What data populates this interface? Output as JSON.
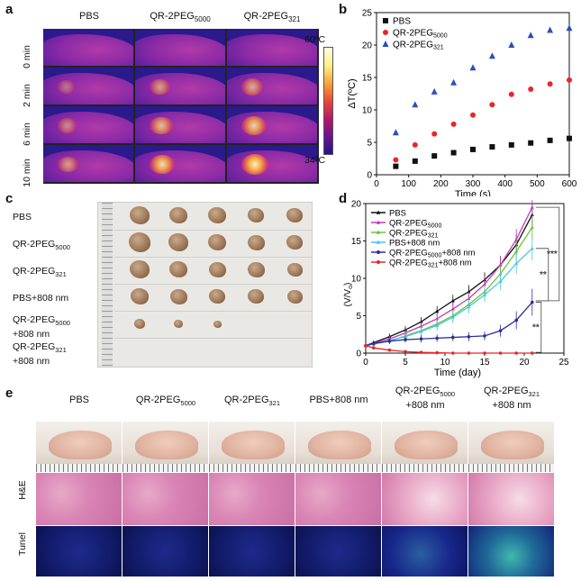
{
  "panel_labels": {
    "a": "a",
    "b": "b",
    "c": "c",
    "d": "d",
    "e": "e"
  },
  "panel_a": {
    "columns": [
      "PBS",
      "QR-2PEG",
      "QR-2PEG"
    ],
    "column_subs": [
      "",
      "5000",
      "321"
    ],
    "rows": [
      "0 min",
      "2 min",
      "6 min",
      "10 min"
    ],
    "scale_top": "60ºC",
    "scale_bottom": "34ºC"
  },
  "panel_c": {
    "rows": [
      {
        "line1": "PBS",
        "line2": ""
      },
      {
        "line1": "QR-2PEG",
        "sub": "5000",
        "line2": ""
      },
      {
        "line1": "QR-2PEG",
        "sub": "321",
        "line2": ""
      },
      {
        "line1": "PBS+808 nm",
        "line2": ""
      },
      {
        "line1": "QR-2PEG",
        "sub": "5000",
        "line2": "+808 nm"
      },
      {
        "line1": "QR-2PEG",
        "sub": "321",
        "line2": "+808 nm"
      }
    ],
    "tumor_counts": [
      5,
      5,
      5,
      5,
      3,
      0
    ]
  },
  "panel_e": {
    "columns": [
      {
        "l1": "PBS",
        "sub": "",
        "l2": ""
      },
      {
        "l1": "QR-2PEG",
        "sub": "5000",
        "l2": ""
      },
      {
        "l1": "QR-2PEG",
        "sub": "321",
        "l2": ""
      },
      {
        "l1": "PBS+808 nm",
        "sub": "",
        "l2": ""
      },
      {
        "l1": "QR-2PEG",
        "sub": "5000",
        "l2": "+808 nm"
      },
      {
        "l1": "QR-2PEG",
        "sub": "321",
        "l2": "+808 nm"
      }
    ],
    "row_labels": [
      "H&E",
      "Tunel"
    ]
  },
  "chart_data": [
    {
      "type": "scatter",
      "panel": "b",
      "xlabel": "Time (s)",
      "ylabel": "ΔT(ºC)",
      "xlim": [
        0,
        600
      ],
      "ylim": [
        0,
        25
      ],
      "xticks": [
        0,
        100,
        200,
        300,
        400,
        500,
        600
      ],
      "yticks": [
        0,
        5,
        10,
        15,
        20,
        25
      ],
      "legend_position": "top-left",
      "series": [
        {
          "name": "PBS",
          "sub": "",
          "marker": "square",
          "color": "#111111",
          "x": [
            60,
            120,
            180,
            240,
            300,
            360,
            420,
            480,
            540,
            600
          ],
          "y": [
            1.3,
            2.1,
            2.9,
            3.4,
            3.9,
            4.3,
            4.6,
            4.9,
            5.3,
            5.6
          ]
        },
        {
          "name": "QR-2PEG",
          "sub": "5000",
          "marker": "circle",
          "color": "#e8262a",
          "x": [
            60,
            120,
            180,
            240,
            300,
            360,
            420,
            480,
            540,
            600
          ],
          "y": [
            2.3,
            4.6,
            6.3,
            7.8,
            9.2,
            10.8,
            12.4,
            13.2,
            14.0,
            14.6
          ]
        },
        {
          "name": "QR-2PEG",
          "sub": "321",
          "marker": "triangle",
          "color": "#2c4fb8",
          "x": [
            60,
            120,
            180,
            240,
            300,
            360,
            420,
            480,
            540,
            600
          ],
          "y": [
            6.5,
            10.8,
            12.8,
            14.2,
            16.5,
            18.3,
            20.0,
            21.5,
            22.3,
            22.6
          ]
        }
      ]
    },
    {
      "type": "line",
      "panel": "d",
      "xlabel": "Time (day)",
      "ylabel": "Relative Tumor Volume",
      "ylabel2": "(V/V",
      "ylabel2_sub": "o",
      "ylabel2_end": ")",
      "xlim": [
        0,
        25
      ],
      "ylim": [
        0,
        20
      ],
      "xticks": [
        0,
        5,
        10,
        15,
        20,
        25
      ],
      "yticks": [
        0,
        5,
        10,
        15,
        20
      ],
      "legend_position": "top-left",
      "significance": [
        "***",
        "**",
        "**"
      ],
      "x": [
        0,
        1,
        3,
        5,
        7,
        9,
        11,
        13,
        15,
        17,
        19,
        21
      ],
      "series": [
        {
          "name": "PBS",
          "sub": "",
          "color": "#111111",
          "marker": "triangle",
          "y": [
            1.0,
            1.4,
            2.2,
            3.1,
            4.2,
            5.6,
            7.0,
            8.2,
            9.8,
            11.8,
            14.5,
            18.5
          ],
          "err": [
            0.2,
            0.3,
            0.4,
            0.5,
            0.6,
            0.7,
            0.8,
            0.9,
            1.0,
            1.2,
            1.4,
            1.6
          ]
        },
        {
          "name": "QR-2PEG",
          "sub": "5000",
          "color": "#c23bbf",
          "marker": "triangle",
          "y": [
            1.0,
            1.3,
            1.9,
            2.7,
            3.6,
            4.6,
            5.9,
            7.3,
            9.2,
            11.8,
            15.2,
            19.5
          ],
          "err": [
            0.2,
            0.3,
            0.4,
            0.5,
            0.6,
            0.7,
            0.8,
            0.9,
            1.0,
            1.2,
            1.4,
            1.6
          ]
        },
        {
          "name": "QR-2PEG",
          "sub": "321",
          "color": "#6ac23b",
          "marker": "triangle",
          "y": [
            1.0,
            1.2,
            1.6,
            2.3,
            3.0,
            3.9,
            5.0,
            6.5,
            8.2,
            10.6,
            13.6,
            16.8
          ],
          "err": [
            0.2,
            0.3,
            0.4,
            0.5,
            0.6,
            0.7,
            0.8,
            0.9,
            1.0,
            1.2,
            1.4,
            1.6
          ]
        },
        {
          "name": "PBS+808 nm",
          "sub": "",
          "color": "#47c6e6",
          "marker": "triangle",
          "y": [
            1.0,
            1.2,
            1.7,
            2.2,
            2.9,
            3.7,
            4.8,
            6.2,
            7.8,
            9.6,
            12.0,
            14.0
          ],
          "err": [
            0.2,
            0.3,
            0.4,
            0.5,
            0.6,
            0.7,
            0.8,
            0.9,
            1.0,
            1.2,
            1.4,
            1.6
          ]
        },
        {
          "name": "QR-2PEG",
          "sub": "5000",
          "name_end": "+808 nm",
          "color": "#2b2f9c",
          "marker": "circle",
          "y": [
            1.0,
            1.3,
            1.6,
            1.8,
            1.9,
            2.0,
            2.1,
            2.2,
            2.3,
            3.0,
            4.4,
            6.8
          ],
          "err": [
            0.2,
            0.3,
            0.4,
            0.4,
            0.5,
            0.5,
            0.5,
            0.6,
            0.6,
            0.8,
            1.2,
            1.8
          ]
        },
        {
          "name": "QR-2PEG",
          "sub": "321",
          "name_end": "+808 nm",
          "color": "#e8262a",
          "marker": "circle",
          "y": [
            1.0,
            0.7,
            0.4,
            0.2,
            0.1,
            0.05,
            0.0,
            0.0,
            0.0,
            0.0,
            0.0,
            0.0
          ],
          "err": [
            0.2,
            0.2,
            0.1,
            0.1,
            0.05,
            0.05,
            0.05,
            0.05,
            0.05,
            0.05,
            0.05,
            0.05
          ]
        }
      ]
    }
  ]
}
